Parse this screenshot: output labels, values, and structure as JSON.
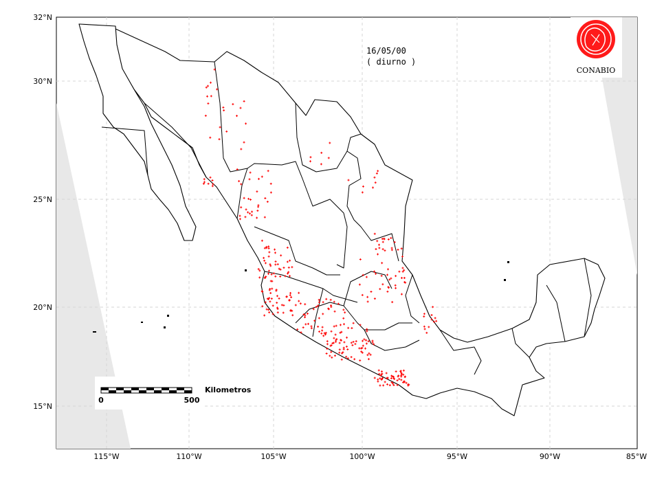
{
  "map": {
    "date": "16/05/00",
    "period": "( diurno )",
    "logo_label": "CONABIO",
    "scale": {
      "label": "Kilometros",
      "start": "0",
      "end": "500"
    },
    "lat_ticks": [
      "32°N",
      "30°N",
      "25°N",
      "20°N",
      "15°N"
    ],
    "lon_ticks": [
      "115°W",
      "110°W",
      "105°W",
      "100°W",
      "95°W",
      "90°W",
      "85°W"
    ],
    "hotspot_color": "#ff0000",
    "border_color": "#000000",
    "swath_color": "#e8e8e8"
  }
}
